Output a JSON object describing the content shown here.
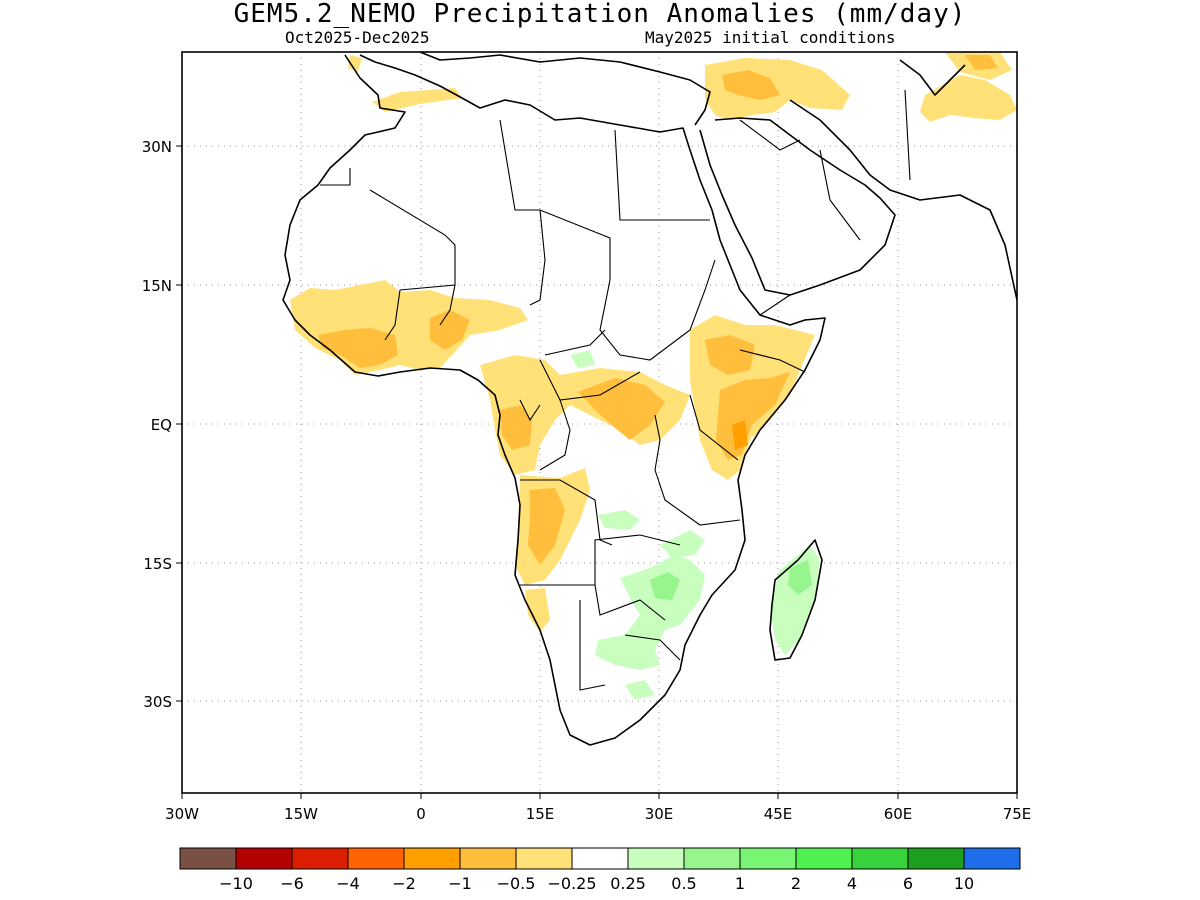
{
  "header": {
    "title": "GEM5.2_NEMO Precipitation Anomalies (mm/day)",
    "period": "Oct2025-Dec2025",
    "init": "May2025 initial conditions"
  },
  "map": {
    "lon_ticks": [
      "30W",
      "15W",
      "0",
      "15E",
      "30E",
      "45E",
      "60E",
      "75E"
    ],
    "lat_ticks": [
      "30N",
      "15N",
      "EQ",
      "15S",
      "30S"
    ],
    "lon_range": [
      -30,
      75
    ],
    "lat_range": [
      -40,
      40
    ],
    "gridlines": "dotted"
  },
  "colorbar": {
    "colors": [
      "#7a4f44",
      "#b40000",
      "#dc1e00",
      "#ff6400",
      "#ffa000",
      "#ffbe3c",
      "#ffe178",
      "#ffffff",
      "#c8ffbe",
      "#96f58c",
      "#78f573",
      "#50f050",
      "#37d23c",
      "#1ea01e",
      "#1e6eeb"
    ],
    "labels": [
      "-10",
      "-6",
      "-4",
      "-2",
      "-1",
      "-0.5",
      "-0.25",
      "0.25",
      "0.5",
      "1",
      "2",
      "4",
      "6",
      "10"
    ]
  },
  "regions": {
    "sahel_west": "-0.5 to -1",
    "central_africa": "-0.5 to -1",
    "east_africa": "-1 to -2",
    "southern_africa": "0.25 to 0.5",
    "madagascar": "0.5 to 1"
  }
}
